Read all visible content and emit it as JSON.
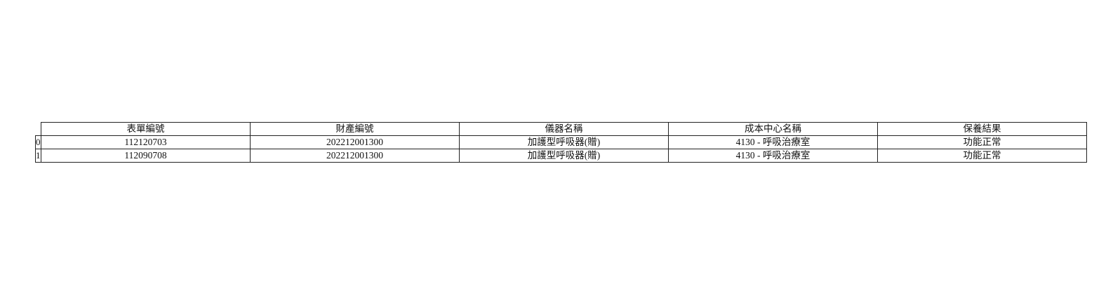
{
  "table": {
    "headers": [
      "表單編號",
      "財產編號",
      "儀器名稱",
      "成本中心名稱",
      "保養結果"
    ],
    "rows": [
      {
        "index": "0",
        "cells": [
          "112120703",
          "202212001300",
          "加護型呼吸器(贈)",
          "4130 - 呼吸治療室",
          "功能正常"
        ]
      },
      {
        "index": "1",
        "cells": [
          "112090708",
          "202212001300",
          "加護型呼吸器(贈)",
          "4130 - 呼吸治療室",
          "功能正常"
        ]
      }
    ]
  }
}
